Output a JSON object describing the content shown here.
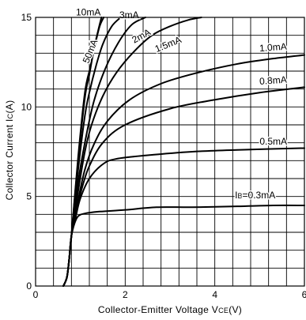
{
  "chart_data": {
    "type": "line",
    "title": "",
    "xlabel": "Collector-Emitter Voltage VCE(V)",
    "xlabel_parts": {
      "main": "Collector-Emitter Voltage V",
      "sub": "CE",
      "unit": "(V)"
    },
    "ylabel": "Collector Current IC(A)",
    "ylabel_parts": {
      "main": "Collector Current I",
      "sub": "C",
      "unit": "(A)"
    },
    "xlim": [
      0,
      6
    ],
    "ylim": [
      0,
      15
    ],
    "x_ticks": [
      {
        "value": 0,
        "label": "0"
      },
      {
        "value": 2,
        "label": "2"
      },
      {
        "value": 4,
        "label": "4"
      },
      {
        "value": 6,
        "label": "6"
      }
    ],
    "y_ticks": [
      {
        "value": 0,
        "label": "0"
      },
      {
        "value": 5,
        "label": "5"
      },
      {
        "value": 10,
        "label": "10"
      },
      {
        "value": 15,
        "label": "15"
      }
    ],
    "grid": true,
    "grid_x_step": 0.4,
    "grid_y_step": 1.0,
    "series": [
      {
        "name": "IB=0.3mA",
        "label_parts": {
          "main": "I",
          "sub": "B",
          "rest": "=0.3mA"
        },
        "points": [
          [
            0.62,
            0
          ],
          [
            0.7,
            0.5
          ],
          [
            0.75,
            1.5
          ],
          [
            0.8,
            2.8
          ],
          [
            0.87,
            3.5
          ],
          [
            0.95,
            3.9
          ],
          [
            1.1,
            4.05
          ],
          [
            1.4,
            4.15
          ],
          [
            2.0,
            4.25
          ],
          [
            2.7,
            4.4
          ],
          [
            3.5,
            4.4
          ],
          [
            4.5,
            4.45
          ],
          [
            5.3,
            4.5
          ],
          [
            6.0,
            4.5
          ]
        ]
      },
      {
        "name": "0.5mA",
        "points": [
          [
            0.62,
            0
          ],
          [
            0.7,
            0.5
          ],
          [
            0.75,
            1.5
          ],
          [
            0.8,
            2.8
          ],
          [
            0.9,
            3.9
          ],
          [
            1.0,
            4.9
          ],
          [
            1.2,
            6.0
          ],
          [
            1.5,
            6.8
          ],
          [
            1.8,
            7.1
          ],
          [
            2.5,
            7.3
          ],
          [
            3.5,
            7.5
          ],
          [
            4.5,
            7.6
          ],
          [
            6.0,
            7.7
          ]
        ]
      },
      {
        "name": "0.8mA",
        "points": [
          [
            0.62,
            0
          ],
          [
            0.7,
            0.5
          ],
          [
            0.75,
            1.5
          ],
          [
            0.8,
            2.8
          ],
          [
            0.92,
            4.3
          ],
          [
            1.05,
            5.6
          ],
          [
            1.2,
            6.7
          ],
          [
            1.5,
            8.0
          ],
          [
            2.0,
            9.0
          ],
          [
            3.0,
            9.9
          ],
          [
            4.0,
            10.4
          ],
          [
            5.0,
            10.8
          ],
          [
            6.0,
            11.1
          ]
        ]
      },
      {
        "name": "1.0mA",
        "points": [
          [
            0.62,
            0
          ],
          [
            0.7,
            0.5
          ],
          [
            0.75,
            1.5
          ],
          [
            0.8,
            2.8
          ],
          [
            0.95,
            4.8
          ],
          [
            1.1,
            6.5
          ],
          [
            1.3,
            7.9
          ],
          [
            1.6,
            9.2
          ],
          [
            2.1,
            10.4
          ],
          [
            2.8,
            11.3
          ],
          [
            3.6,
            11.9
          ],
          [
            4.5,
            12.4
          ],
          [
            5.3,
            12.7
          ],
          [
            6.0,
            12.9
          ]
        ]
      },
      {
        "name": "1.5mA",
        "points": [
          [
            0.62,
            0
          ],
          [
            0.7,
            0.5
          ],
          [
            0.75,
            1.5
          ],
          [
            0.8,
            2.8
          ],
          [
            0.95,
            5.3
          ],
          [
            1.1,
            7.5
          ],
          [
            1.25,
            9.0
          ],
          [
            1.5,
            10.6
          ],
          [
            1.8,
            11.9
          ],
          [
            2.2,
            13.1
          ],
          [
            2.6,
            14.0
          ],
          [
            3.0,
            14.5
          ],
          [
            3.4,
            14.85
          ],
          [
            3.7,
            15.0
          ]
        ]
      },
      {
        "name": "2mA",
        "points": [
          [
            0.62,
            0
          ],
          [
            0.7,
            0.5
          ],
          [
            0.75,
            1.5
          ],
          [
            0.8,
            2.8
          ],
          [
            0.95,
            5.8
          ],
          [
            1.1,
            8.0
          ],
          [
            1.3,
            10.3
          ],
          [
            1.55,
            12.1
          ],
          [
            1.85,
            13.6
          ],
          [
            2.15,
            14.6
          ],
          [
            2.45,
            15.0
          ]
        ]
      },
      {
        "name": "3mA",
        "points": [
          [
            0.62,
            0
          ],
          [
            0.7,
            0.5
          ],
          [
            0.75,
            1.5
          ],
          [
            0.8,
            2.8
          ],
          [
            0.95,
            6.5
          ],
          [
            1.1,
            9.5
          ],
          [
            1.2,
            10.8
          ],
          [
            1.35,
            12.3
          ],
          [
            1.5,
            13.5
          ],
          [
            1.7,
            14.5
          ],
          [
            1.9,
            15.0
          ]
        ]
      },
      {
        "name": "50mA",
        "points": [
          [
            0.62,
            0
          ],
          [
            0.7,
            0.5
          ],
          [
            0.75,
            1.5
          ],
          [
            0.8,
            2.8
          ],
          [
            0.95,
            7.0
          ],
          [
            1.1,
            10.5
          ],
          [
            1.2,
            11.8
          ],
          [
            1.3,
            13.2
          ],
          [
            1.4,
            14.3
          ],
          [
            1.47,
            15.0
          ]
        ]
      },
      {
        "name": "10mA",
        "points": [
          [
            0.62,
            0
          ],
          [
            0.7,
            0.5
          ],
          [
            0.75,
            1.5
          ],
          [
            0.8,
            2.8
          ],
          [
            0.95,
            7.2
          ],
          [
            1.1,
            10.8
          ],
          [
            1.22,
            12.2
          ],
          [
            1.33,
            13.5
          ],
          [
            1.43,
            14.5
          ],
          [
            1.52,
            15.0
          ]
        ]
      }
    ],
    "annotations": [
      {
        "text": "10mA",
        "x": 0.9,
        "y": 15.12,
        "rotate": 0
      },
      {
        "text": "3mA",
        "x": 1.87,
        "y": 14.95,
        "rotate": 0
      },
      {
        "text": "50mA",
        "x": 1.18,
        "y": 12.4,
        "rotate": -68
      },
      {
        "text": "2mA",
        "x": 2.2,
        "y": 13.55,
        "rotate": -28
      },
      {
        "text": "1.5mA",
        "x": 2.7,
        "y": 13.05,
        "rotate": -22
      },
      {
        "text": "1.0mA",
        "x": 5.0,
        "y": 13.1,
        "rotate": -4
      },
      {
        "text": "0.8mA",
        "x": 5.0,
        "y": 11.25,
        "rotate": -4
      },
      {
        "text": "0.5mA",
        "x": 5.0,
        "y": 7.9,
        "rotate": 0
      }
    ]
  }
}
